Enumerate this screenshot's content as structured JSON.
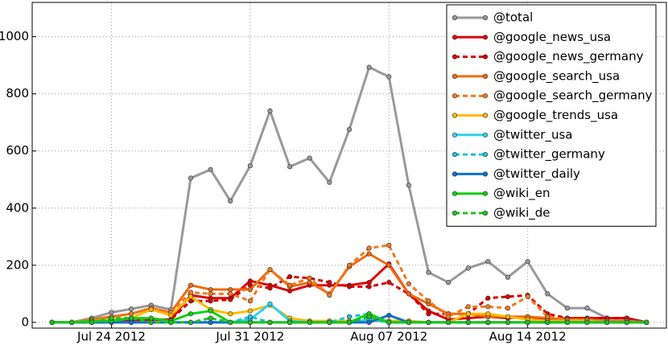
{
  "chart_data": {
    "type": "line",
    "x": [
      "2012-07-21",
      "2012-07-22",
      "2012-07-23",
      "2012-07-24",
      "2012-07-25",
      "2012-07-26",
      "2012-07-27",
      "2012-07-28",
      "2012-07-29",
      "2012-07-30",
      "2012-07-31",
      "2012-08-01",
      "2012-08-02",
      "2012-08-03",
      "2012-08-04",
      "2012-08-05",
      "2012-08-06",
      "2012-08-07",
      "2012-08-08",
      "2012-08-09",
      "2012-08-10",
      "2012-08-11",
      "2012-08-12",
      "2012-08-13",
      "2012-08-14",
      "2012-08-15",
      "2012-08-16",
      "2012-08-17",
      "2012-08-18",
      "2012-08-19",
      "2012-08-20"
    ],
    "xlim": [
      "2012-07-20",
      "2012-08-21"
    ],
    "xticks": [
      {
        "value": "2012-07-24",
        "label": "Jul 24 2012"
      },
      {
        "value": "2012-07-31",
        "label": "Jul 31 2012"
      },
      {
        "value": "2012-08-07",
        "label": "Aug 07 2012"
      },
      {
        "value": "2012-08-14",
        "label": "Aug 14 2012"
      }
    ],
    "ylim": [
      -20,
      1120
    ],
    "yticks": [
      0,
      200,
      400,
      600,
      800,
      1000
    ],
    "grid": true,
    "legend": "upper right",
    "series": [
      {
        "name": "@total",
        "color": "#999999",
        "dash": false,
        "values": [
          0,
          0,
          15,
          35,
          47,
          60,
          45,
          505,
          535,
          425,
          548,
          740,
          545,
          575,
          490,
          675,
          893,
          860,
          480,
          175,
          140,
          190,
          213,
          158,
          213,
          100,
          50,
          50,
          15,
          15,
          0
        ]
      },
      {
        "name": "@google_news_usa",
        "color": "#e00000",
        "dash": false,
        "values": [
          0,
          0,
          0,
          5,
          5,
          10,
          10,
          95,
          85,
          85,
          145,
          130,
          110,
          130,
          130,
          130,
          140,
          205,
          100,
          40,
          10,
          15,
          20,
          15,
          20,
          10,
          15,
          15,
          15,
          15,
          0
        ]
      },
      {
        "name": "@google_news_germany",
        "color": "#d40000",
        "dash": true,
        "values": [
          0,
          0,
          0,
          5,
          5,
          10,
          10,
          75,
          75,
          80,
          130,
          120,
          160,
          155,
          140,
          125,
          125,
          140,
          100,
          30,
          30,
          30,
          85,
          90,
          95,
          30,
          15,
          15,
          15,
          15,
          0
        ]
      },
      {
        "name": "@google_search_usa",
        "color": "#f06a10",
        "dash": false,
        "values": [
          0,
          0,
          10,
          20,
          30,
          50,
          35,
          130,
          115,
          115,
          115,
          185,
          125,
          140,
          100,
          195,
          240,
          200,
          100,
          65,
          30,
          30,
          20,
          20,
          20,
          15,
          10,
          10,
          5,
          5,
          0
        ]
      },
      {
        "name": "@google_search_germany",
        "color": "#f07a20",
        "dash": true,
        "values": [
          0,
          0,
          10,
          20,
          30,
          50,
          35,
          105,
          100,
          100,
          75,
          185,
          130,
          155,
          95,
          200,
          260,
          270,
          135,
          75,
          20,
          55,
          55,
          50,
          90,
          20,
          10,
          10,
          5,
          5,
          0
        ]
      },
      {
        "name": "@google_trends_usa",
        "color": "#ffbb00",
        "dash": false,
        "values": [
          0,
          0,
          5,
          10,
          15,
          45,
          25,
          90,
          45,
          30,
          40,
          60,
          15,
          5,
          5,
          5,
          5,
          5,
          5,
          0,
          0,
          30,
          30,
          20,
          10,
          5,
          5,
          5,
          0,
          0,
          0
        ]
      },
      {
        "name": "@twitter_usa",
        "color": "#30d0f0",
        "dash": false,
        "values": [
          0,
          0,
          0,
          0,
          0,
          0,
          0,
          0,
          0,
          0,
          10,
          65,
          5,
          0,
          0,
          0,
          10,
          0,
          0,
          0,
          0,
          0,
          0,
          0,
          0,
          0,
          0,
          0,
          0,
          0,
          0
        ]
      },
      {
        "name": "@twitter_germany",
        "color": "#20c0e0",
        "dash": true,
        "values": [
          0,
          0,
          0,
          0,
          0,
          0,
          0,
          0,
          0,
          0,
          20,
          0,
          0,
          0,
          0,
          20,
          30,
          0,
          0,
          0,
          0,
          0,
          0,
          0,
          0,
          0,
          0,
          0,
          0,
          0,
          0
        ]
      },
      {
        "name": "@twitter_daily",
        "color": "#1070d0",
        "dash": false,
        "values": [
          0,
          0,
          0,
          0,
          0,
          0,
          0,
          0,
          0,
          0,
          0,
          0,
          0,
          0,
          0,
          0,
          0,
          25,
          0,
          0,
          0,
          0,
          0,
          0,
          0,
          0,
          0,
          0,
          0,
          0,
          0
        ]
      },
      {
        "name": "@wiki_en",
        "color": "#10d010",
        "dash": false,
        "values": [
          0,
          0,
          5,
          5,
          15,
          15,
          5,
          30,
          40,
          0,
          0,
          0,
          0,
          0,
          0,
          0,
          30,
          0,
          0,
          0,
          0,
          0,
          0,
          0,
          0,
          0,
          0,
          0,
          0,
          0,
          0
        ]
      },
      {
        "name": "@wiki_de",
        "color": "#20c020",
        "dash": true,
        "values": [
          0,
          0,
          0,
          15,
          15,
          0,
          0,
          0,
          15,
          0,
          0,
          0,
          0,
          0,
          0,
          0,
          20,
          0,
          0,
          0,
          0,
          0,
          0,
          0,
          0,
          0,
          0,
          0,
          0,
          0,
          0
        ]
      }
    ]
  }
}
